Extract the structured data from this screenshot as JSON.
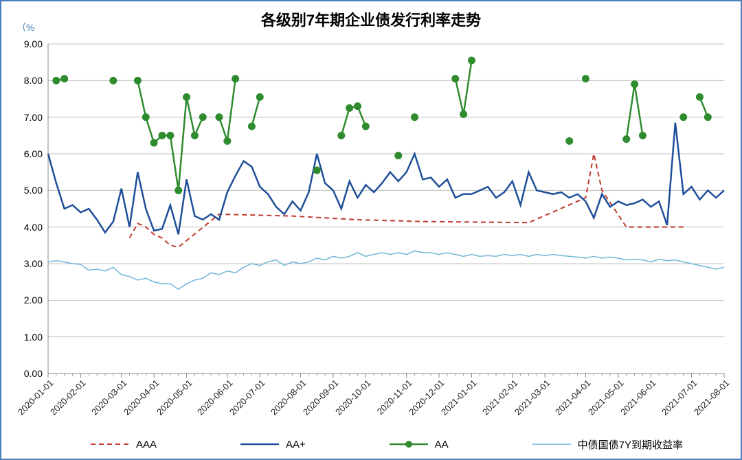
{
  "title": "各级别7年期企业债发行利率走势",
  "title_fontsize": 22,
  "y_unit_label": "（%",
  "background_color": "#ffffff",
  "border_color": "#4a7ebb",
  "grid_color": "#bfbfbf",
  "axis_color": "#888888",
  "y_axis": {
    "min": 0.0,
    "max": 9.0,
    "step": 1.0,
    "tick_format": "0.00",
    "tick_fontsize": 14
  },
  "x_axis": {
    "labels": [
      "2020-01-01",
      "2020-02-01",
      "2020-03-01",
      "2020-04-01",
      "2020-05-01",
      "2020-06-01",
      "2020-07-01",
      "2020-08-01",
      "2020-09-01",
      "2020-10-01",
      "2020-11-01",
      "2020-12-01",
      "2021-01-01",
      "2021-02-01",
      "2021-03-01",
      "2021-04-01",
      "2021-05-01",
      "2021-06-01",
      "2021-07-01",
      "2021-08-01"
    ],
    "n_points": 84,
    "tick_fontsize": 13
  },
  "series": {
    "aaa": {
      "label": "AAA",
      "color": "#c0392b",
      "style": "dashed",
      "line_width": 2,
      "marker": "none",
      "data": [
        null,
        null,
        null,
        null,
        null,
        null,
        null,
        null,
        null,
        null,
        3.7,
        4.1,
        4.0,
        3.8,
        3.7,
        3.5,
        3.45,
        null,
        null,
        null,
        null,
        4.35,
        null,
        null,
        null,
        null,
        null,
        null,
        null,
        null,
        4.3,
        null,
        null,
        null,
        null,
        null,
        null,
        null,
        4.2,
        null,
        null,
        null,
        null,
        null,
        null,
        null,
        4.15,
        null,
        null,
        null,
        null,
        null,
        null,
        null,
        null,
        null,
        null,
        null,
        null,
        4.12,
        null,
        null,
        null,
        null,
        null,
        null,
        4.8,
        6.0,
        5.0,
        null,
        null,
        4.0,
        null,
        null,
        null,
        null,
        null,
        null,
        4.0,
        null,
        null,
        null,
        null,
        null
      ]
    },
    "aa_plus": {
      "label": "AA+",
      "color": "#1f4e99",
      "style": "solid",
      "line_width": 2.5,
      "marker": "none",
      "data": [
        6.0,
        5.2,
        4.5,
        4.6,
        4.4,
        4.5,
        4.2,
        3.85,
        4.15,
        5.05,
        4.0,
        5.5,
        4.5,
        3.9,
        3.95,
        4.6,
        3.8,
        5.3,
        4.3,
        4.2,
        4.35,
        4.2,
        4.95,
        5.4,
        5.8,
        5.65,
        5.1,
        4.9,
        4.55,
        4.35,
        4.7,
        4.45,
        4.95,
        6.0,
        5.2,
        5.0,
        4.5,
        5.25,
        4.8,
        5.15,
        4.95,
        5.2,
        5.5,
        5.25,
        5.5,
        6.0,
        5.3,
        5.35,
        5.1,
        5.3,
        4.8,
        4.9,
        4.9,
        5.0,
        5.1,
        4.8,
        4.95,
        5.25,
        4.6,
        5.5,
        5.0,
        4.95,
        4.9,
        4.95,
        4.8,
        4.9,
        4.7,
        4.25,
        4.9,
        4.55,
        4.7,
        4.6,
        4.65,
        4.75,
        4.55,
        4.7,
        4.05,
        6.85,
        4.9,
        5.1,
        4.75,
        5.0,
        4.8,
        5.0
      ]
    },
    "aa": {
      "label": "AA",
      "color": "#2e8b2e",
      "style": "solid",
      "line_width": 2.5,
      "marker": "circle",
      "marker_size": 5,
      "data": [
        null,
        8.0,
        8.05,
        null,
        null,
        null,
        null,
        null,
        8.0,
        null,
        null,
        8.0,
        7.0,
        6.3,
        6.5,
        6.5,
        5.0,
        7.55,
        6.5,
        7.0,
        null,
        7.0,
        6.35,
        8.05,
        null,
        6.75,
        7.55,
        null,
        null,
        null,
        null,
        null,
        null,
        5.55,
        null,
        null,
        6.5,
        7.25,
        7.3,
        6.75,
        null,
        null,
        null,
        5.95,
        null,
        7.0,
        null,
        null,
        null,
        null,
        8.05,
        7.08,
        8.55,
        null,
        null,
        null,
        null,
        null,
        null,
        null,
        null,
        null,
        null,
        null,
        6.35,
        null,
        8.05,
        null,
        null,
        null,
        null,
        6.4,
        7.9,
        6.5,
        null,
        null,
        null,
        null,
        7.0,
        null,
        7.55,
        7.0,
        null,
        null
      ]
    },
    "govt7y": {
      "label": "中债国债7Y到期收益率",
      "color": "#6fb5d6",
      "style": "solid",
      "line_width": 1.5,
      "marker": "none",
      "data": [
        3.05,
        3.08,
        3.05,
        3.0,
        2.98,
        2.82,
        2.85,
        2.8,
        2.9,
        2.7,
        2.65,
        2.55,
        2.6,
        2.5,
        2.45,
        2.45,
        2.3,
        2.45,
        2.55,
        2.6,
        2.75,
        2.7,
        2.8,
        2.75,
        2.9,
        3.0,
        2.95,
        3.05,
        3.1,
        2.95,
        3.05,
        3.0,
        3.05,
        3.15,
        3.1,
        3.2,
        3.15,
        3.2,
        3.3,
        3.2,
        3.25,
        3.3,
        3.25,
        3.3,
        3.25,
        3.35,
        3.3,
        3.3,
        3.25,
        3.3,
        3.25,
        3.2,
        3.25,
        3.2,
        3.22,
        3.2,
        3.25,
        3.22,
        3.25,
        3.2,
        3.25,
        3.22,
        3.25,
        3.22,
        3.2,
        3.18,
        3.15,
        3.2,
        3.15,
        3.18,
        3.15,
        3.1,
        3.12,
        3.1,
        3.05,
        3.12,
        3.08,
        3.1,
        3.05,
        3.0,
        2.95,
        2.9,
        2.85,
        2.9
      ]
    }
  },
  "legend": {
    "fontsize": 15,
    "items": [
      "aaa",
      "aa_plus",
      "aa",
      "govt7y"
    ]
  }
}
